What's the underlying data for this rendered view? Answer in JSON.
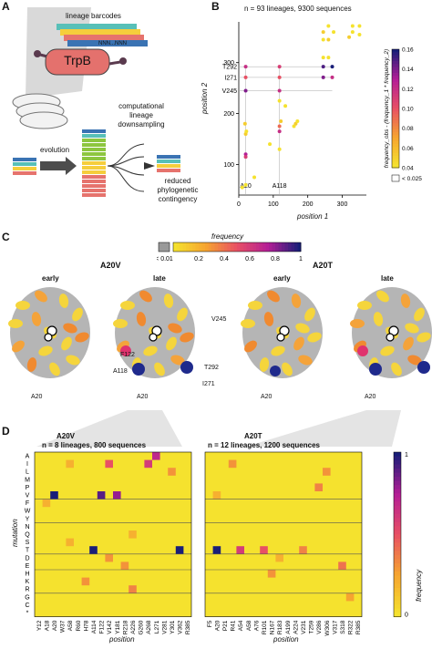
{
  "panels": {
    "A": {
      "letter": "A",
      "barcode_label": "lineage barcodes",
      "barcode_tail": "NNN...NNN",
      "enzyme": "TrpB",
      "downsampling": [
        "computational",
        "lineage",
        "downsampling"
      ],
      "evolution": "evolution",
      "reduced": [
        "reduced",
        "phylogenetic",
        "contingency"
      ]
    },
    "B": {
      "letter": "B",
      "title": "n = 93 lineages, 9300 sequences",
      "xlabel": "position 1",
      "ylabel": "position 2",
      "colorbar_title": "frequency_obs - (frequency_1 * frequency_2)",
      "colorbar_ticks": [
        "0.16",
        "0.14",
        "0.12",
        "0.10",
        "0.08",
        "0.06",
        "0.04"
      ],
      "below_label": "< 0.025",
      "x_ticks": [
        "0",
        "100",
        "200",
        "300"
      ],
      "y_ticks": [
        "100",
        "200",
        "300"
      ],
      "y_annot": [
        "T292",
        "I271",
        "V245"
      ],
      "x_annot": [
        "A20",
        "A118"
      ]
    },
    "C": {
      "letter": "C",
      "cbar_title": "frequency",
      "cbar_ticks": [
        "< 0.01",
        "0.2",
        "0.4",
        "0.6",
        "0.8",
        "1"
      ],
      "groups": [
        {
          "name": "A20V",
          "early": "early",
          "late": "late"
        },
        {
          "name": "A20T",
          "early": "early",
          "late": "late"
        }
      ],
      "residue_labels": [
        "V245",
        "F122",
        "A118",
        "T292",
        "I271",
        "A20",
        "A20",
        "A20",
        "A20"
      ]
    },
    "D": {
      "letter": "D",
      "ylabel": "mutation",
      "xlabel": "position",
      "cbar_title": "frequency",
      "cbar_ticks": [
        "0",
        "1"
      ],
      "mutations": [
        "A",
        "I",
        "L",
        "M",
        "P",
        "V",
        "F",
        "W",
        "Y",
        "N",
        "Q",
        "S",
        "T",
        "D",
        "E",
        "H",
        "K",
        "R",
        "G",
        "C",
        "*"
      ],
      "left": {
        "group": "A20V",
        "subtitle": "n = 8 lineages, 800 sequences",
        "positions": [
          "Y12",
          "A18",
          "A20",
          "W37",
          "A58",
          "R60",
          "H78",
          "A114",
          "F122",
          "V142",
          "Y181",
          "R218",
          "A226",
          "G260",
          "A268",
          "L271",
          "V281",
          "Y301",
          "V362",
          "R385"
        ]
      },
      "right": {
        "group": "A20T",
        "subtitle": "n = 12 lineages, 1200 sequences",
        "positions": [
          "F5",
          "A20",
          "P21",
          "R41",
          "A54",
          "A58",
          "A76",
          "R101",
          "N167",
          "R183",
          "A199",
          "A224",
          "V231",
          "T259",
          "V286",
          "W306",
          "V317",
          "S318",
          "R322",
          "R385"
        ]
      }
    }
  },
  "chart_data": [
    {
      "type": "scatter",
      "title": "n = 93 lineages, 9300 sequences",
      "xlabel": "position 1",
      "ylabel": "position 2",
      "xlim": [
        0,
        370
      ],
      "ylim": [
        40,
        380
      ],
      "points": [
        {
          "x": 20,
          "y": 292,
          "v": 0.12
        },
        {
          "x": 20,
          "y": 271,
          "v": 0.1
        },
        {
          "x": 20,
          "y": 245,
          "v": 0.14
        },
        {
          "x": 20,
          "y": 160,
          "v": 0.05
        },
        {
          "x": 20,
          "y": 120,
          "v": 0.13
        },
        {
          "x": 20,
          "y": 115,
          "v": 0.11
        },
        {
          "x": 20,
          "y": 60,
          "v": 0.04
        },
        {
          "x": 18,
          "y": 180,
          "v": 0.05
        },
        {
          "x": 22,
          "y": 165,
          "v": 0.04
        },
        {
          "x": 118,
          "y": 292,
          "v": 0.11
        },
        {
          "x": 118,
          "y": 271,
          "v": 0.1
        },
        {
          "x": 118,
          "y": 245,
          "v": 0.12
        },
        {
          "x": 118,
          "y": 175,
          "v": 0.09
        },
        {
          "x": 118,
          "y": 165,
          "v": 0.12
        },
        {
          "x": 118,
          "y": 130,
          "v": 0.04
        },
        {
          "x": 118,
          "y": 225,
          "v": 0.04
        },
        {
          "x": 90,
          "y": 140,
          "v": 0.04
        },
        {
          "x": 122,
          "y": 185,
          "v": 0.05
        },
        {
          "x": 135,
          "y": 215,
          "v": 0.04
        },
        {
          "x": 160,
          "y": 175,
          "v": 0.04
        },
        {
          "x": 165,
          "y": 180,
          "v": 0.05
        },
        {
          "x": 170,
          "y": 185,
          "v": 0.04
        },
        {
          "x": 245,
          "y": 292,
          "v": 0.15
        },
        {
          "x": 245,
          "y": 271,
          "v": 0.14
        },
        {
          "x": 271,
          "y": 292,
          "v": 0.16
        },
        {
          "x": 271,
          "y": 271,
          "v": 0.12
        },
        {
          "x": 245,
          "y": 310,
          "v": 0.04
        },
        {
          "x": 260,
          "y": 310,
          "v": 0.04
        },
        {
          "x": 245,
          "y": 345,
          "v": 0.04
        },
        {
          "x": 260,
          "y": 345,
          "v": 0.05
        },
        {
          "x": 275,
          "y": 360,
          "v": 0.04
        },
        {
          "x": 245,
          "y": 360,
          "v": 0.05
        },
        {
          "x": 330,
          "y": 360,
          "v": 0.04
        },
        {
          "x": 320,
          "y": 350,
          "v": 0.05
        },
        {
          "x": 350,
          "y": 355,
          "v": 0.04
        },
        {
          "x": 260,
          "y": 372,
          "v": 0.04
        },
        {
          "x": 330,
          "y": 372,
          "v": 0.04
        },
        {
          "x": 350,
          "y": 372,
          "v": 0.04
        },
        {
          "x": 45,
          "y": 75,
          "v": 0.04
        },
        {
          "x": 10,
          "y": 55,
          "v": 0.04
        }
      ]
    },
    {
      "type": "heatmap",
      "title": "A20V",
      "xlabel": "position",
      "ylabel": "mutation",
      "cells": [
        {
          "r": "I",
          "c": "V142",
          "v": 0.5
        },
        {
          "r": "I",
          "c": "A268",
          "v": 0.6
        },
        {
          "r": "A",
          "c": "L271",
          "v": 0.7
        },
        {
          "r": "V",
          "c": "A20",
          "v": 1.0
        },
        {
          "r": "V",
          "c": "F122",
          "v": 0.9
        },
        {
          "r": "V",
          "c": "Y181",
          "v": 0.8
        },
        {
          "r": "T",
          "c": "A114",
          "v": 1.0
        },
        {
          "r": "T",
          "c": "V362",
          "v": 1.0
        },
        {
          "r": "L",
          "c": "Y301",
          "v": 0.3
        },
        {
          "r": "I",
          "c": "A58",
          "v": 0.2
        },
        {
          "r": "Q",
          "c": "A226",
          "v": 0.2
        },
        {
          "r": "D",
          "c": "V142",
          "v": 0.3
        },
        {
          "r": "R",
          "c": "A226",
          "v": 0.35
        },
        {
          "r": "E",
          "c": "R218",
          "v": 0.3
        },
        {
          "r": "K",
          "c": "H78",
          "v": 0.3
        },
        {
          "r": "S",
          "c": "A58",
          "v": 0.2
        },
        {
          "r": "F",
          "c": "A18",
          "v": 0.2
        }
      ]
    },
    {
      "type": "heatmap",
      "title": "A20T",
      "xlabel": "position",
      "ylabel": "mutation",
      "cells": [
        {
          "r": "T",
          "c": "A20",
          "v": 1.0
        },
        {
          "r": "T",
          "c": "A54",
          "v": 0.6
        },
        {
          "r": "T",
          "c": "R101",
          "v": 0.5
        },
        {
          "r": "T",
          "c": "V231",
          "v": 0.35
        },
        {
          "r": "I",
          "c": "R41",
          "v": 0.3
        },
        {
          "r": "P",
          "c": "V286",
          "v": 0.35
        },
        {
          "r": "V",
          "c": "A20",
          "v": 0.2
        },
        {
          "r": "L",
          "c": "W306",
          "v": 0.3
        },
        {
          "r": "D",
          "c": "R183",
          "v": 0.2
        },
        {
          "r": "H",
          "c": "N167",
          "v": 0.3
        },
        {
          "r": "E",
          "c": "S318",
          "v": 0.4
        },
        {
          "r": "G",
          "c": "R322",
          "v": 0.25
        }
      ]
    }
  ]
}
